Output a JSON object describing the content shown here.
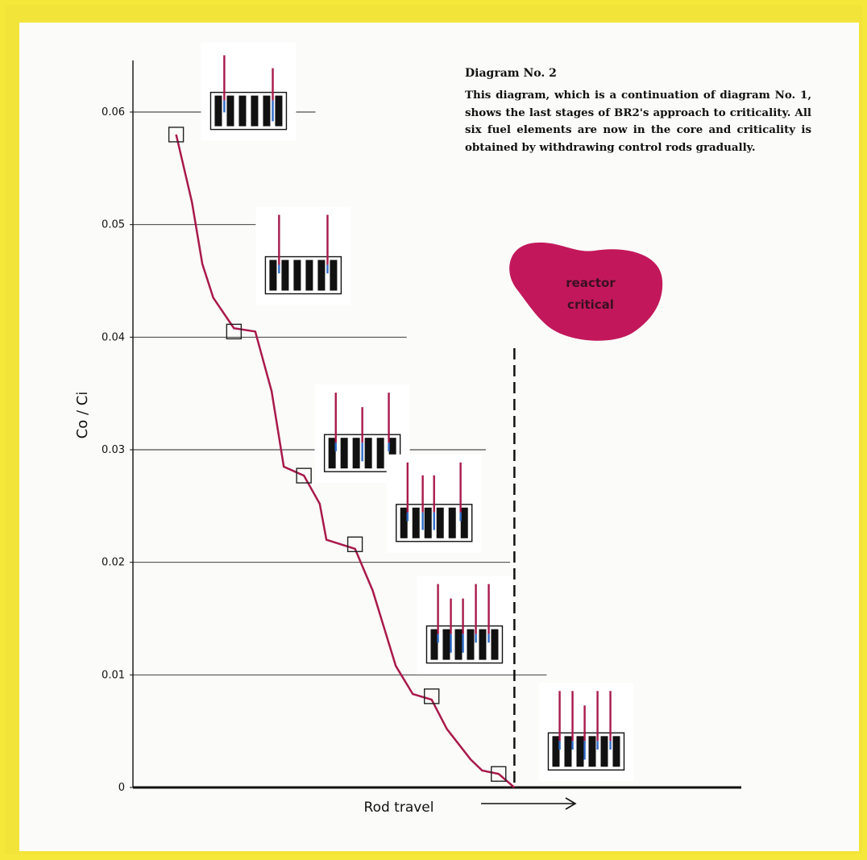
{
  "caption": {
    "title": "Diagram No. 2",
    "text": "This diagram, which is a continuation of diagram No. 1, shows the last stages of BR2's approach to criticality. All six fuel elements are now in the core and criticality is obtained by withdrawing control rods gradually."
  },
  "annotation": {
    "line1": "reactor",
    "line2": "critical",
    "fill_color": "#c2185b"
  },
  "colors": {
    "curve": "#a8194c",
    "rod": "#a8194c",
    "fuel": "#111111",
    "rod_tip": "#2f6bc7",
    "border": "#f3e43a"
  },
  "chart_data": {
    "type": "line",
    "ylabel": "Co / Ci",
    "xlabel": "Rod travel",
    "y_ticks": [
      "0",
      "0.01",
      "0.02",
      "0.03",
      "0.04",
      "0.05",
      "0.06"
    ],
    "ylim": [
      0,
      0.065
    ],
    "x_ticks_labeled": false,
    "points": [
      {
        "x": 0.071,
        "y": 0.058
      },
      {
        "x": 0.097,
        "y": 0.052
      },
      {
        "x": 0.114,
        "y": 0.0465
      },
      {
        "x": 0.132,
        "y": 0.0435
      },
      {
        "x": 0.166,
        "y": 0.0408
      },
      {
        "x": 0.201,
        "y": 0.0405
      },
      {
        "x": 0.228,
        "y": 0.0352
      },
      {
        "x": 0.248,
        "y": 0.0285
      },
      {
        "x": 0.281,
        "y": 0.0277
      },
      {
        "x": 0.307,
        "y": 0.0252
      },
      {
        "x": 0.318,
        "y": 0.022
      },
      {
        "x": 0.365,
        "y": 0.0212
      },
      {
        "x": 0.394,
        "y": 0.0175
      },
      {
        "x": 0.432,
        "y": 0.0108
      },
      {
        "x": 0.46,
        "y": 0.0083
      },
      {
        "x": 0.491,
        "y": 0.0078
      },
      {
        "x": 0.516,
        "y": 0.0052
      },
      {
        "x": 0.555,
        "y": 0.0025
      },
      {
        "x": 0.574,
        "y": 0.0015
      },
      {
        "x": 0.601,
        "y": 0.0012
      },
      {
        "x": 0.627,
        "y": 0.0
      }
    ],
    "markers": [
      {
        "x": 0.071,
        "y": 0.058
      },
      {
        "x": 0.166,
        "y": 0.0405
      },
      {
        "x": 0.281,
        "y": 0.0277
      },
      {
        "x": 0.365,
        "y": 0.0216
      },
      {
        "x": 0.491,
        "y": 0.0081
      },
      {
        "x": 0.601,
        "y": 0.0012
      }
    ],
    "critical_x": 0.627,
    "gridlines": [
      {
        "y": 0.06,
        "x_end": 0.3
      },
      {
        "y": 0.05,
        "x_end": 0.21
      },
      {
        "y": 0.04,
        "x_end": 0.45
      },
      {
        "y": 0.03,
        "x_end": 0.58
      },
      {
        "y": 0.02,
        "x_end": 0.62
      },
      {
        "y": 0.01,
        "x_end": 0.68
      }
    ],
    "core_diagrams": [
      {
        "cx": 0.19,
        "cy": 0.0601,
        "rods": [
          {
            "pos": 0.18,
            "up": 0.85
          },
          {
            "pos": 0.82,
            "up": 0.45
          }
        ]
      },
      {
        "cx": 0.28,
        "cy": 0.0455,
        "rods": [
          {
            "pos": 0.18,
            "up": 1.0
          },
          {
            "pos": 0.82,
            "up": 1.0
          }
        ]
      },
      {
        "cx": 0.377,
        "cy": 0.0297,
        "rods": [
          {
            "pos": 0.15,
            "up": 1.0
          },
          {
            "pos": 0.5,
            "up": 0.55
          },
          {
            "pos": 0.85,
            "up": 1.0
          }
        ]
      },
      {
        "cx": 0.495,
        "cy": 0.0235,
        "rods": [
          {
            "pos": 0.15,
            "up": 1.0
          },
          {
            "pos": 0.35,
            "up": 0.6
          },
          {
            "pos": 0.5,
            "up": 0.6
          },
          {
            "pos": 0.85,
            "up": 1.0
          }
        ]
      },
      {
        "cx": 0.545,
        "cy": 0.0127,
        "rods": [
          {
            "pos": 0.15,
            "up": 1.0
          },
          {
            "pos": 0.32,
            "up": 0.55
          },
          {
            "pos": 0.48,
            "up": 0.55
          },
          {
            "pos": 0.65,
            "up": 1.0
          },
          {
            "pos": 0.82,
            "up": 1.0
          }
        ]
      },
      {
        "cx": 0.745,
        "cy": 0.0032,
        "rods": [
          {
            "pos": 0.15,
            "up": 1.0
          },
          {
            "pos": 0.32,
            "up": 1.0
          },
          {
            "pos": 0.48,
            "up": 0.55
          },
          {
            "pos": 0.65,
            "up": 1.0
          },
          {
            "pos": 0.82,
            "up": 1.0
          }
        ]
      }
    ]
  }
}
